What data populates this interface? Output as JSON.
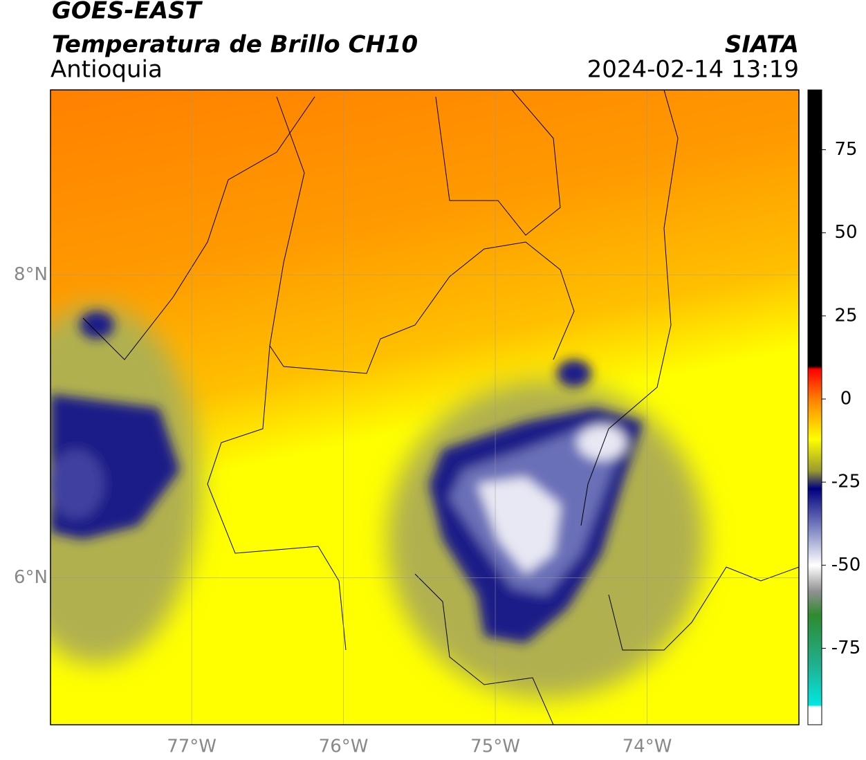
{
  "chart_data": {
    "type": "map",
    "title": "GOES-EAST",
    "subtitle": "Temperatura de Brillo CH10",
    "region": "Antioquia",
    "source": "SIATA",
    "datetime": "2024-02-14 13:19",
    "xlim": [
      -77.93,
      -73.0
    ],
    "ylim": [
      5.03,
      9.22
    ],
    "xticks": [
      {
        "value": -77,
        "label": "77°W"
      },
      {
        "value": -76,
        "label": "76°W"
      },
      {
        "value": -75,
        "label": "75°W"
      },
      {
        "value": -74,
        "label": "74°W"
      }
    ],
    "yticks": [
      {
        "value": 8,
        "label": "8°N"
      },
      {
        "value": 6,
        "label": "6°N"
      }
    ],
    "grid": true,
    "colorbar_lim": [
      -98,
      93
    ],
    "colorbar_ticks": [
      75,
      50,
      25,
      0,
      -25,
      -50,
      -75
    ]
  }
}
